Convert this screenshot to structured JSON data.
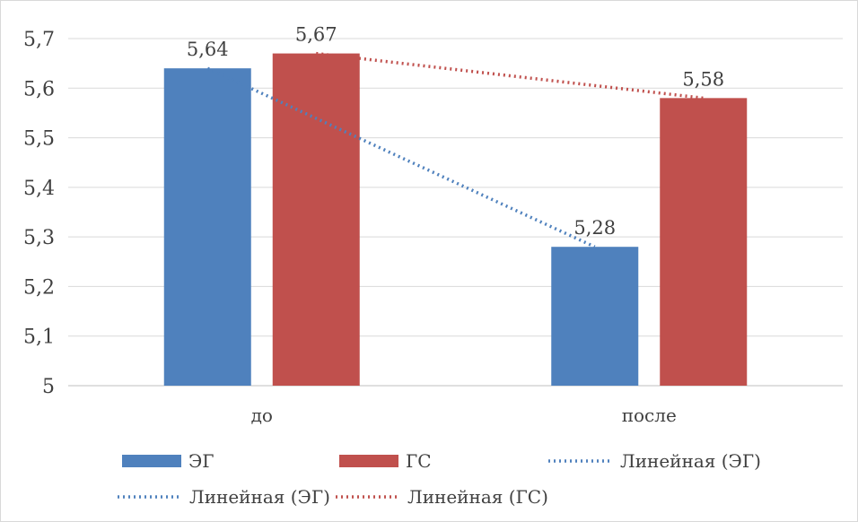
{
  "chart_data": {
    "type": "bar",
    "categories": [
      "до",
      "после"
    ],
    "series": [
      {
        "name": "ЭГ",
        "values": [
          5.64,
          5.28
        ],
        "color": "#4f81bd"
      },
      {
        "name": "ГС",
        "values": [
          5.67,
          5.58
        ],
        "color": "#c0504d"
      }
    ],
    "data_labels": [
      [
        "5,64",
        "5,28"
      ],
      [
        "5,67",
        "5,58"
      ]
    ],
    "trendlines": [
      {
        "name": "Линейная (ЭГ)",
        "series": "ЭГ",
        "style": "dotted",
        "color": "#4f81bd"
      },
      {
        "name": "Линейная (ГС)",
        "series": "ГС",
        "style": "dotted",
        "color": "#c0504d"
      }
    ],
    "ylim": [
      5,
      5.7
    ],
    "y_ticks": [
      "5",
      "5,1",
      "5,2",
      "5,3",
      "5,4",
      "5,5",
      "5,6",
      "5,7"
    ],
    "grid": true,
    "legend_placement": "bottom",
    "legend_entries": [
      {
        "label": "ЭГ",
        "kind": "bar",
        "color": "#4f81bd"
      },
      {
        "label": "ГС",
        "kind": "bar",
        "color": "#c0504d"
      },
      {
        "label": "Линейная (ЭГ)",
        "kind": "dotted",
        "color": "#4f81bd"
      },
      {
        "label": "Линейная (ЭГ)",
        "kind": "dotted",
        "color": "#4f81bd"
      },
      {
        "label": "Линейная (ГС)",
        "kind": "dotted",
        "color": "#c0504d"
      }
    ]
  }
}
